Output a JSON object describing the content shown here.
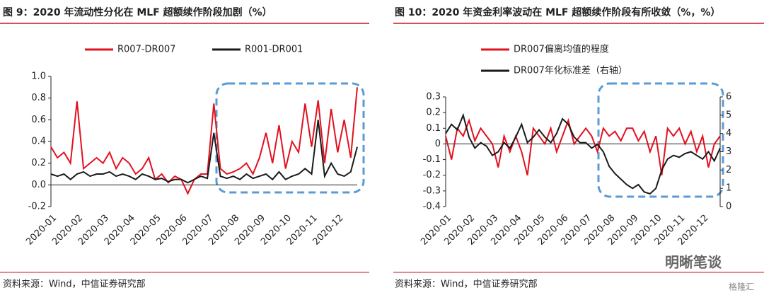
{
  "chart_data": [
    {
      "type": "line",
      "title": "图 9：2020 年流动性分化在 MLF 超额续作阶段加剧（%）",
      "source": "资料来源：Wind，中信证券研究部",
      "categories": [
        "2020-01",
        null,
        null,
        null,
        "2020-02",
        null,
        null,
        null,
        "2020-03",
        null,
        null,
        null,
        "2020-04",
        null,
        null,
        null,
        "2020-05",
        null,
        null,
        null,
        "2020-06",
        null,
        null,
        null,
        "2020-07",
        null,
        null,
        null,
        "2020-08",
        null,
        null,
        null,
        "2020-09",
        null,
        null,
        null,
        "2020-10",
        null,
        null,
        null,
        "2020-11",
        null,
        null,
        null,
        "2020-12",
        null,
        null,
        null
      ],
      "series": [
        {
          "name": "R007-DR007",
          "color": "#e3101e",
          "values": [
            0.35,
            0.25,
            0.3,
            0.2,
            0.77,
            0.15,
            0.2,
            0.25,
            0.2,
            0.3,
            0.15,
            0.25,
            0.2,
            0.1,
            0.15,
            0.25,
            0.05,
            0.1,
            0.02,
            0.08,
            0.05,
            -0.08,
            0.05,
            0.1,
            0.1,
            0.75,
            0.15,
            0.1,
            0.12,
            0.15,
            0.2,
            0.1,
            0.25,
            0.48,
            0.2,
            0.55,
            0.15,
            0.4,
            0.3,
            0.75,
            0.35,
            0.78,
            0.2,
            0.7,
            0.3,
            0.6,
            0.25,
            0.9
          ]
        },
        {
          "name": "R001-DR001",
          "color": "#1a1a1a",
          "values": [
            0.1,
            0.08,
            0.1,
            0.05,
            0.1,
            0.12,
            0.08,
            0.1,
            0.1,
            0.12,
            0.08,
            0.1,
            0.08,
            0.05,
            0.1,
            0.08,
            0.05,
            0.06,
            0.03,
            0.05,
            0.05,
            0.02,
            0.05,
            0.08,
            0.06,
            0.48,
            0.08,
            0.06,
            0.08,
            0.05,
            0.1,
            0.06,
            0.08,
            0.1,
            0.05,
            0.12,
            0.05,
            0.08,
            0.1,
            0.15,
            0.1,
            0.6,
            0.08,
            0.2,
            0.1,
            0.08,
            0.12,
            0.35
          ]
        }
      ],
      "ylim": [
        -0.2,
        1
      ],
      "yticks": [
        -0.2,
        {
          "value": 0,
          "label": "0.0"
        },
        0.2,
        0.4,
        0.6,
        0.8,
        {
          "value": 1,
          "label": "1.0"
        }
      ]
    },
    {
      "type": "line",
      "title": "图 10：2020 年资金利率波动在 MLF 超额续作阶段有所收敛（%，%）",
      "source": "资料来源：Wind，中信证券研究部",
      "categories": [
        "2020-01",
        null,
        null,
        null,
        "2020-02",
        null,
        null,
        null,
        "2020-03",
        null,
        null,
        null,
        "2020-04",
        null,
        null,
        null,
        "2020-05",
        null,
        null,
        null,
        "2020-06",
        null,
        null,
        null,
        "2020-07",
        null,
        null,
        null,
        "2020-08",
        null,
        null,
        null,
        "2020-09",
        null,
        null,
        null,
        "2020-10",
        null,
        null,
        null,
        "2020-11",
        null,
        null,
        null,
        "2020-12",
        null,
        null,
        null
      ],
      "series": [
        {
          "name": "DR007偏离均值的程度",
          "color": "#e3101e",
          "values": [
            0.05,
            -0.1,
            0.1,
            0.05,
            0.15,
            0.02,
            0.1,
            0.05,
            0,
            -0.15,
            0.05,
            -0.05,
            0.05,
            -0.05,
            -0.2,
            0.1,
            0.05,
            0,
            0.1,
            -0.05,
            0.05,
            0.15,
            0,
            0.05,
            0.1,
            0.05,
            -0.05,
            0.1,
            0.05,
            0.08,
            0.02,
            0.1,
            0.1,
            0.02,
            0.08,
            -0.05,
            0.05,
            -0.2,
            0.1,
            0.05,
            0.1,
            0,
            0.08,
            -0.05,
            0.05,
            -0.15,
            0,
            0.05
          ]
        },
        {
          "name": "DR007年化标准差（右轴）",
          "color": "#1a1a1a",
          "axis": "y2",
          "values": [
            4.0,
            4.5,
            4.2,
            5.0,
            3.8,
            3.2,
            3.5,
            3.3,
            2.8,
            3.0,
            3.5,
            3.2,
            3.8,
            4.5,
            3.5,
            3.8,
            4.2,
            3.8,
            3.5,
            4.0,
            4.8,
            4.5,
            3.8,
            3.5,
            3.5,
            3.2,
            3.4,
            3.0,
            2.2,
            1.8,
            1.5,
            1.2,
            1.0,
            1.2,
            0.8,
            0.7,
            1.0,
            2.0,
            2.6,
            2.8,
            2.7,
            2.9,
            3.0,
            2.8,
            2.6,
            3.0,
            2.5,
            3.2
          ]
        }
      ],
      "ylim": [
        -0.4,
        0.3
      ],
      "yticks": [
        -0.4,
        -0.3,
        -0.2,
        -0.1,
        0,
        0.1,
        0.2,
        0.3
      ],
      "y2lim": [
        0,
        6
      ],
      "y2ticks": [
        0,
        1,
        2,
        3,
        4,
        5,
        6
      ]
    }
  ],
  "watermark": "明晰笔谈",
  "watermark2": "格隆汇"
}
